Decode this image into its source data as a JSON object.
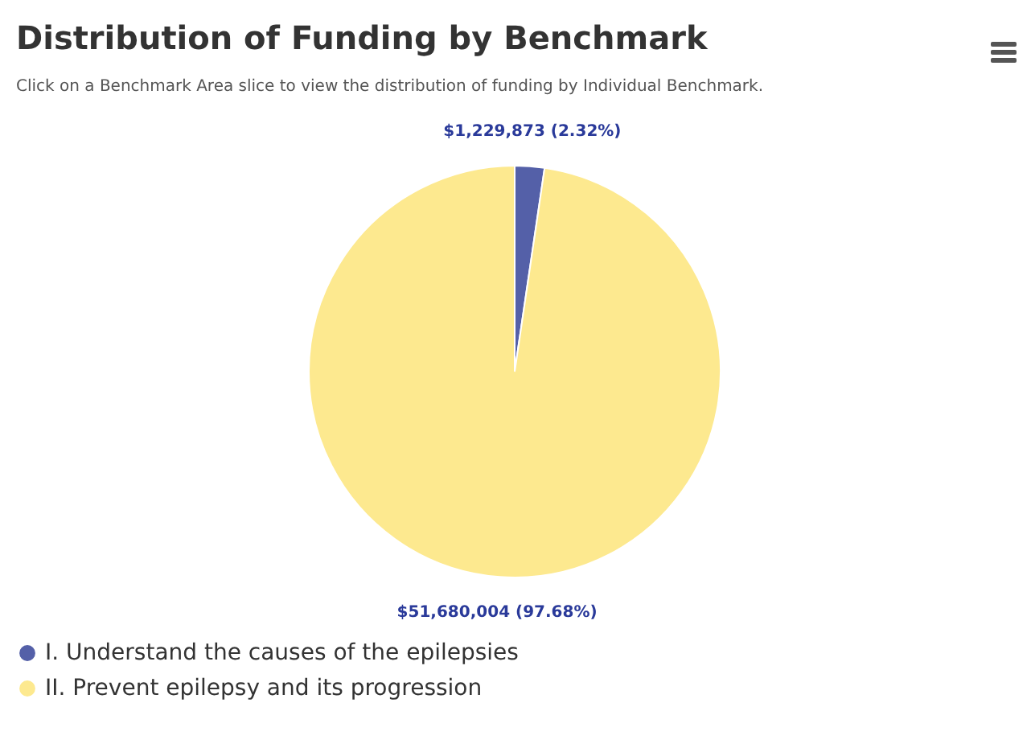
{
  "chart_data": {
    "type": "pie",
    "title": "Distribution of Funding by Benchmark",
    "subtitle": "Click on a Benchmark Area slice to view the distribution of funding by Individual Benchmark.",
    "categories": [
      "I. Understand the causes of the epilepsies",
      "II. Prevent epilepsy and its progression"
    ],
    "values": [
      1229873,
      51680004
    ],
    "colors": [
      "#5460a8",
      "#fde98f"
    ],
    "value_labels": [
      "$1,229,873 (2.32%)",
      "$51,680,004 (97.68%)"
    ],
    "legend": "bottom"
  }
}
